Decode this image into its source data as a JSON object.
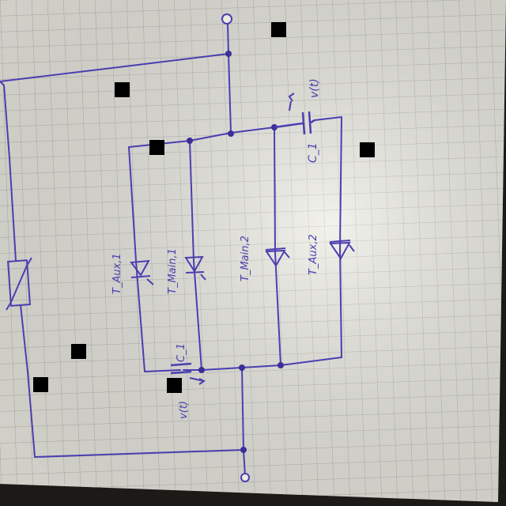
{
  "colors": {
    "ink": "#4a3fb0",
    "paper": "#ecebe3",
    "grid": "#b9b8b2",
    "background": "#1c1a17",
    "redaction": "#000000"
  },
  "components": {
    "aux1": "T_Aux,1",
    "main1": "T_Main,1",
    "main2": "T_Main,2",
    "aux2": "T_Aux,2",
    "c1_top": "C_1",
    "c1_bottom": "C_1",
    "v_top": "v(t)",
    "v_bottom": "v(t)"
  },
  "icons": {
    "thyristor": "thyristor-icon",
    "capacitor": "capacitor-icon",
    "varistor": "varistor-icon",
    "terminal": "terminal-icon",
    "junction": "junction-dot-icon",
    "redaction": "redaction-box-icon"
  }
}
